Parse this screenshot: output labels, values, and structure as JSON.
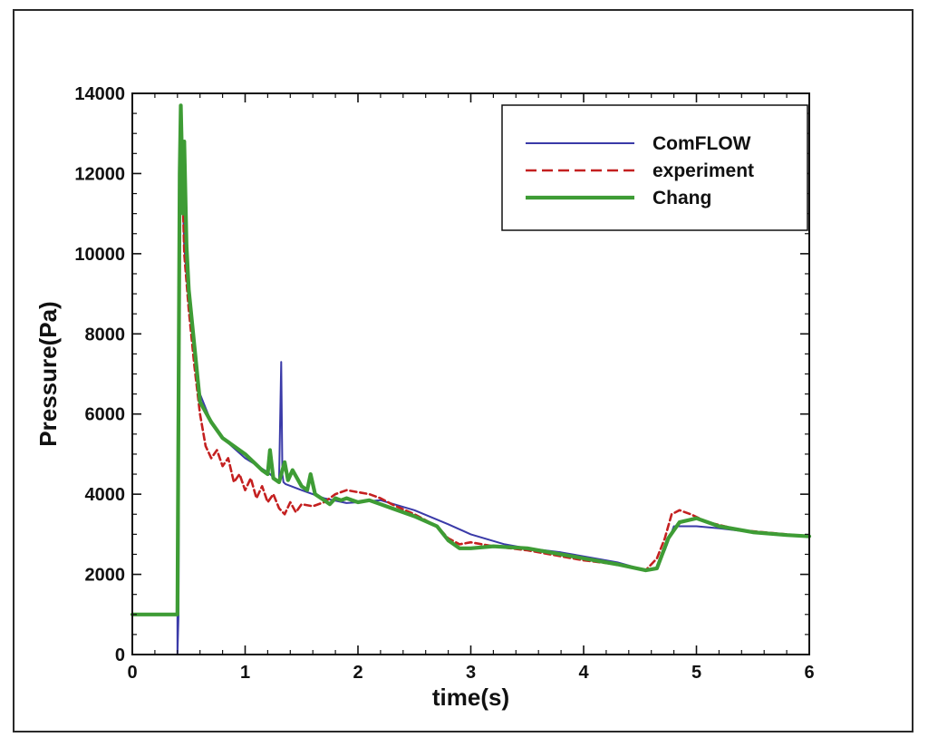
{
  "chart_data": {
    "type": "line",
    "title": "",
    "xlabel": "time(s)",
    "ylabel": "Pressure(Pa)",
    "xlim": [
      0,
      6
    ],
    "ylim": [
      0,
      14000
    ],
    "xticks": [
      "0",
      "1",
      "2",
      "3",
      "4",
      "5",
      "6"
    ],
    "yticks": [
      "0",
      "2000",
      "4000",
      "6000",
      "8000",
      "10000",
      "12000",
      "14000"
    ],
    "grid": false,
    "legend_position": "top-right",
    "series": [
      {
        "name": "ComFLOW",
        "color": "#3a3aa8",
        "style": "solid-thin",
        "x": [
          0,
          0.4,
          0.4,
          0.41,
          0.42,
          0.43,
          0.44,
          0.46,
          0.5,
          0.55,
          0.6,
          0.7,
          0.8,
          1.0,
          1.2,
          1.3,
          1.32,
          1.33,
          1.34,
          1.36,
          1.5,
          1.7,
          1.9,
          2.0,
          2.2,
          2.5,
          2.8,
          3.0,
          3.3,
          3.5,
          3.8,
          4.0,
          4.3,
          4.55,
          4.65,
          4.72,
          4.8,
          4.9,
          5.0,
          5.2,
          5.5,
          5.8,
          6.0
        ],
        "y": [
          1000,
          1000,
          0,
          1000,
          11800,
          13600,
          12000,
          10200,
          8800,
          7600,
          6500,
          5800,
          5400,
          4900,
          4550,
          4300,
          7300,
          4500,
          4300,
          4250,
          4100,
          3900,
          3780,
          3800,
          3850,
          3600,
          3250,
          3000,
          2750,
          2650,
          2550,
          2450,
          2300,
          2100,
          2150,
          2600,
          3200,
          3200,
          3200,
          3150,
          3050,
          2980,
          2950
        ]
      },
      {
        "name": "experiment",
        "color": "#c42020",
        "style": "dashed",
        "x": [
          0,
          0.4,
          0.42,
          0.43,
          0.44,
          0.46,
          0.5,
          0.55,
          0.6,
          0.65,
          0.7,
          0.75,
          0.8,
          0.85,
          0.9,
          0.95,
          1.0,
          1.05,
          1.1,
          1.15,
          1.2,
          1.25,
          1.3,
          1.35,
          1.4,
          1.45,
          1.5,
          1.6,
          1.7,
          1.8,
          1.9,
          2.0,
          2.1,
          2.2,
          2.3,
          2.5,
          2.7,
          2.8,
          2.9,
          3.0,
          3.2,
          3.5,
          4.0,
          4.3,
          4.55,
          4.65,
          4.72,
          4.78,
          4.85,
          4.95,
          5.1,
          5.4,
          5.8,
          6.0
        ],
        "y": [
          1000,
          1000,
          12000,
          13500,
          12200,
          10000,
          8600,
          7200,
          6000,
          5200,
          4900,
          5100,
          4700,
          4900,
          4300,
          4500,
          4100,
          4400,
          3900,
          4200,
          3800,
          4000,
          3650,
          3500,
          3800,
          3550,
          3750,
          3700,
          3800,
          4000,
          4100,
          4050,
          4000,
          3900,
          3750,
          3500,
          3200,
          2900,
          2750,
          2800,
          2700,
          2600,
          2350,
          2250,
          2100,
          2400,
          2900,
          3500,
          3600,
          3500,
          3300,
          3100,
          3000,
          2950
        ]
      },
      {
        "name": "Chang",
        "color": "#3e9c35",
        "style": "solid-thick",
        "x": [
          0,
          0.4,
          0.42,
          0.43,
          0.44,
          0.45,
          0.46,
          0.48,
          0.5,
          0.55,
          0.6,
          0.7,
          0.8,
          1.0,
          1.15,
          1.2,
          1.22,
          1.25,
          1.3,
          1.35,
          1.38,
          1.42,
          1.5,
          1.55,
          1.58,
          1.62,
          1.7,
          1.75,
          1.8,
          1.85,
          1.9,
          2.0,
          2.1,
          2.2,
          2.3,
          2.5,
          2.7,
          2.8,
          2.9,
          3.0,
          3.2,
          3.5,
          4.0,
          4.3,
          4.55,
          4.65,
          4.75,
          4.85,
          5.0,
          5.2,
          5.5,
          5.8,
          6.0
        ],
        "y": [
          1000,
          1000,
          12000,
          13700,
          12400,
          11000,
          12800,
          10200,
          9100,
          7700,
          6300,
          5800,
          5400,
          5000,
          4600,
          4500,
          5100,
          4400,
          4300,
          4800,
          4350,
          4600,
          4200,
          4100,
          4500,
          4000,
          3850,
          3750,
          3900,
          3850,
          3900,
          3800,
          3850,
          3750,
          3650,
          3450,
          3200,
          2850,
          2650,
          2650,
          2700,
          2650,
          2400,
          2250,
          2100,
          2150,
          2900,
          3300,
          3400,
          3200,
          3050,
          2980,
          2950
        ]
      }
    ]
  }
}
